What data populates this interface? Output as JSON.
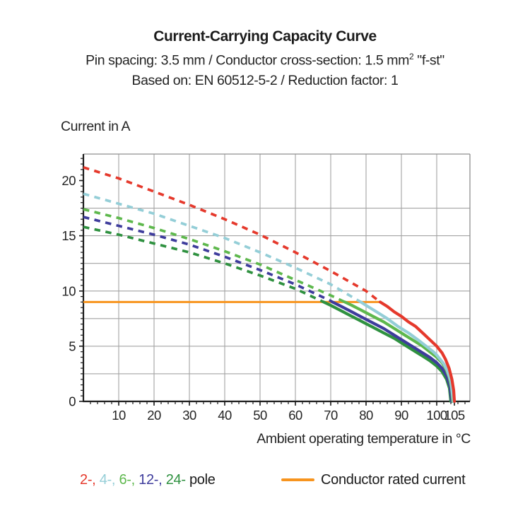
{
  "header": {
    "title": "Current-Carrying Capacity Curve",
    "subtitle1_pre": "Pin spacing: 3.5 mm / Conductor cross-section: 1.5 mm",
    "subtitle1_sup": "2",
    "subtitle1_post": " \"f-st\"",
    "subtitle2": "Based on: EN 60512-5-2 / Reduction factor: 1"
  },
  "chart_data": {
    "type": "line",
    "title": "Current-Carrying Capacity Curve",
    "xlabel": "Ambient operating temperature in °C",
    "ylabel": "Current in A",
    "xlim": [
      0,
      109.4
    ],
    "ylim": [
      0,
      22.4
    ],
    "x_major_ticks": [
      10,
      20,
      30,
      40,
      50,
      60,
      70,
      80,
      90,
      100,
      105
    ],
    "x_minor_step": 2,
    "y_major_ticks": [
      0,
      5,
      10,
      15,
      20
    ],
    "y_minor_step": 0.5,
    "grid": {
      "x_step": 10,
      "y_step": 2.5,
      "color": "#a3a3a3",
      "border_color": "#8f8f8f",
      "axis_color": "#1c1c1c"
    },
    "rated_current": {
      "label": "Conductor rated current",
      "value": 9,
      "x_start": 0,
      "x_end": 84,
      "color": "#f7941e"
    },
    "series": [
      {
        "name": "2-pole",
        "color": "#e5392c",
        "solid_from": 84,
        "points": [
          [
            0,
            21.2
          ],
          [
            10,
            20.2
          ],
          [
            20,
            19.0
          ],
          [
            30,
            17.8
          ],
          [
            40,
            16.5
          ],
          [
            50,
            15.1
          ],
          [
            60,
            13.5
          ],
          [
            70,
            11.8
          ],
          [
            80,
            10.0
          ],
          [
            84,
            9.0
          ],
          [
            86,
            8.6
          ],
          [
            88,
            8.1
          ],
          [
            90,
            7.7
          ],
          [
            92,
            7.2
          ],
          [
            94,
            6.8
          ],
          [
            96,
            6.2
          ],
          [
            98,
            5.6
          ],
          [
            100,
            5.0
          ],
          [
            101.5,
            4.4
          ],
          [
            102.5,
            3.8
          ],
          [
            103.5,
            3.0
          ],
          [
            104.3,
            2.0
          ],
          [
            104.8,
            1.0
          ],
          [
            105,
            0
          ]
        ]
      },
      {
        "name": "4-pole",
        "color": "#94ced7",
        "solid_from": 78.5,
        "points": [
          [
            0,
            18.8
          ],
          [
            10,
            17.9
          ],
          [
            20,
            17.0
          ],
          [
            30,
            15.9
          ],
          [
            40,
            14.8
          ],
          [
            50,
            13.5
          ],
          [
            60,
            12.1
          ],
          [
            70,
            10.6
          ],
          [
            78.5,
            9.0
          ],
          [
            80,
            8.7
          ],
          [
            83,
            8.1
          ],
          [
            86,
            7.5
          ],
          [
            89,
            6.8
          ],
          [
            92,
            6.2
          ],
          [
            95,
            5.5
          ],
          [
            97,
            5.0
          ],
          [
            99,
            4.5
          ],
          [
            100,
            4.2
          ],
          [
            101,
            3.8
          ],
          [
            102,
            3.4
          ],
          [
            103,
            2.8
          ],
          [
            104,
            1.8
          ],
          [
            104.7,
            0
          ]
        ]
      },
      {
        "name": "6-pole",
        "color": "#5eb84d",
        "solid_from": 74,
        "points": [
          [
            0,
            17.4
          ],
          [
            10,
            16.6
          ],
          [
            20,
            15.7
          ],
          [
            30,
            14.7
          ],
          [
            40,
            13.6
          ],
          [
            50,
            12.4
          ],
          [
            60,
            11.0
          ],
          [
            70,
            9.6
          ],
          [
            74,
            9.0
          ],
          [
            76,
            8.7
          ],
          [
            79,
            8.2
          ],
          [
            82,
            7.7
          ],
          [
            85,
            7.2
          ],
          [
            88,
            6.6
          ],
          [
            91,
            6.0
          ],
          [
            94,
            5.4
          ],
          [
            96,
            5.0
          ],
          [
            98,
            4.5
          ],
          [
            100,
            4.0
          ],
          [
            101.5,
            3.5
          ],
          [
            102.5,
            3.0
          ],
          [
            103.5,
            2.2
          ],
          [
            104.2,
            1.2
          ],
          [
            104.5,
            0
          ]
        ]
      },
      {
        "name": "12-pole",
        "color": "#3e3c9c",
        "solid_from": 70.5,
        "points": [
          [
            0,
            16.7
          ],
          [
            10,
            15.9
          ],
          [
            20,
            15.1
          ],
          [
            30,
            14.2
          ],
          [
            40,
            13.1
          ],
          [
            50,
            11.9
          ],
          [
            60,
            10.6
          ],
          [
            70,
            9.1
          ],
          [
            70.5,
            9.0
          ],
          [
            73,
            8.6
          ],
          [
            76,
            8.1
          ],
          [
            79,
            7.6
          ],
          [
            82,
            7.1
          ],
          [
            85,
            6.6
          ],
          [
            88,
            6.0
          ],
          [
            91,
            5.4
          ],
          [
            94,
            4.8
          ],
          [
            96,
            4.4
          ],
          [
            98,
            4.0
          ],
          [
            100,
            3.5
          ],
          [
            101.5,
            3.0
          ],
          [
            102.8,
            2.3
          ],
          [
            103.8,
            1.3
          ],
          [
            104.2,
            0
          ]
        ]
      },
      {
        "name": "24-pole",
        "color": "#2f9140",
        "solid_from": 68,
        "points": [
          [
            0,
            15.8
          ],
          [
            10,
            15.1
          ],
          [
            20,
            14.3
          ],
          [
            30,
            13.5
          ],
          [
            40,
            12.5
          ],
          [
            50,
            11.4
          ],
          [
            60,
            10.2
          ],
          [
            68,
            9.0
          ],
          [
            70,
            8.7
          ],
          [
            73,
            8.2
          ],
          [
            76,
            7.7
          ],
          [
            79,
            7.2
          ],
          [
            82,
            6.7
          ],
          [
            85,
            6.2
          ],
          [
            88,
            5.7
          ],
          [
            91,
            5.1
          ],
          [
            94,
            4.5
          ],
          [
            96,
            4.1
          ],
          [
            98,
            3.7
          ],
          [
            100,
            3.2
          ],
          [
            101.5,
            2.7
          ],
          [
            102.8,
            2.0
          ],
          [
            103.6,
            1.2
          ],
          [
            104,
            0
          ]
        ]
      }
    ],
    "legend": {
      "pole_items": [
        {
          "label": "2-,",
          "color": "#e5392c"
        },
        {
          "label": "4-,",
          "color": "#94ced7"
        },
        {
          "label": "6-,",
          "color": "#5eb84d"
        },
        {
          "label": "12-,",
          "color": "#3e3c9c"
        },
        {
          "label": "24-",
          "color": "#2f9140"
        }
      ],
      "pole_suffix": " pole",
      "rated_label": "Conductor rated current"
    }
  }
}
